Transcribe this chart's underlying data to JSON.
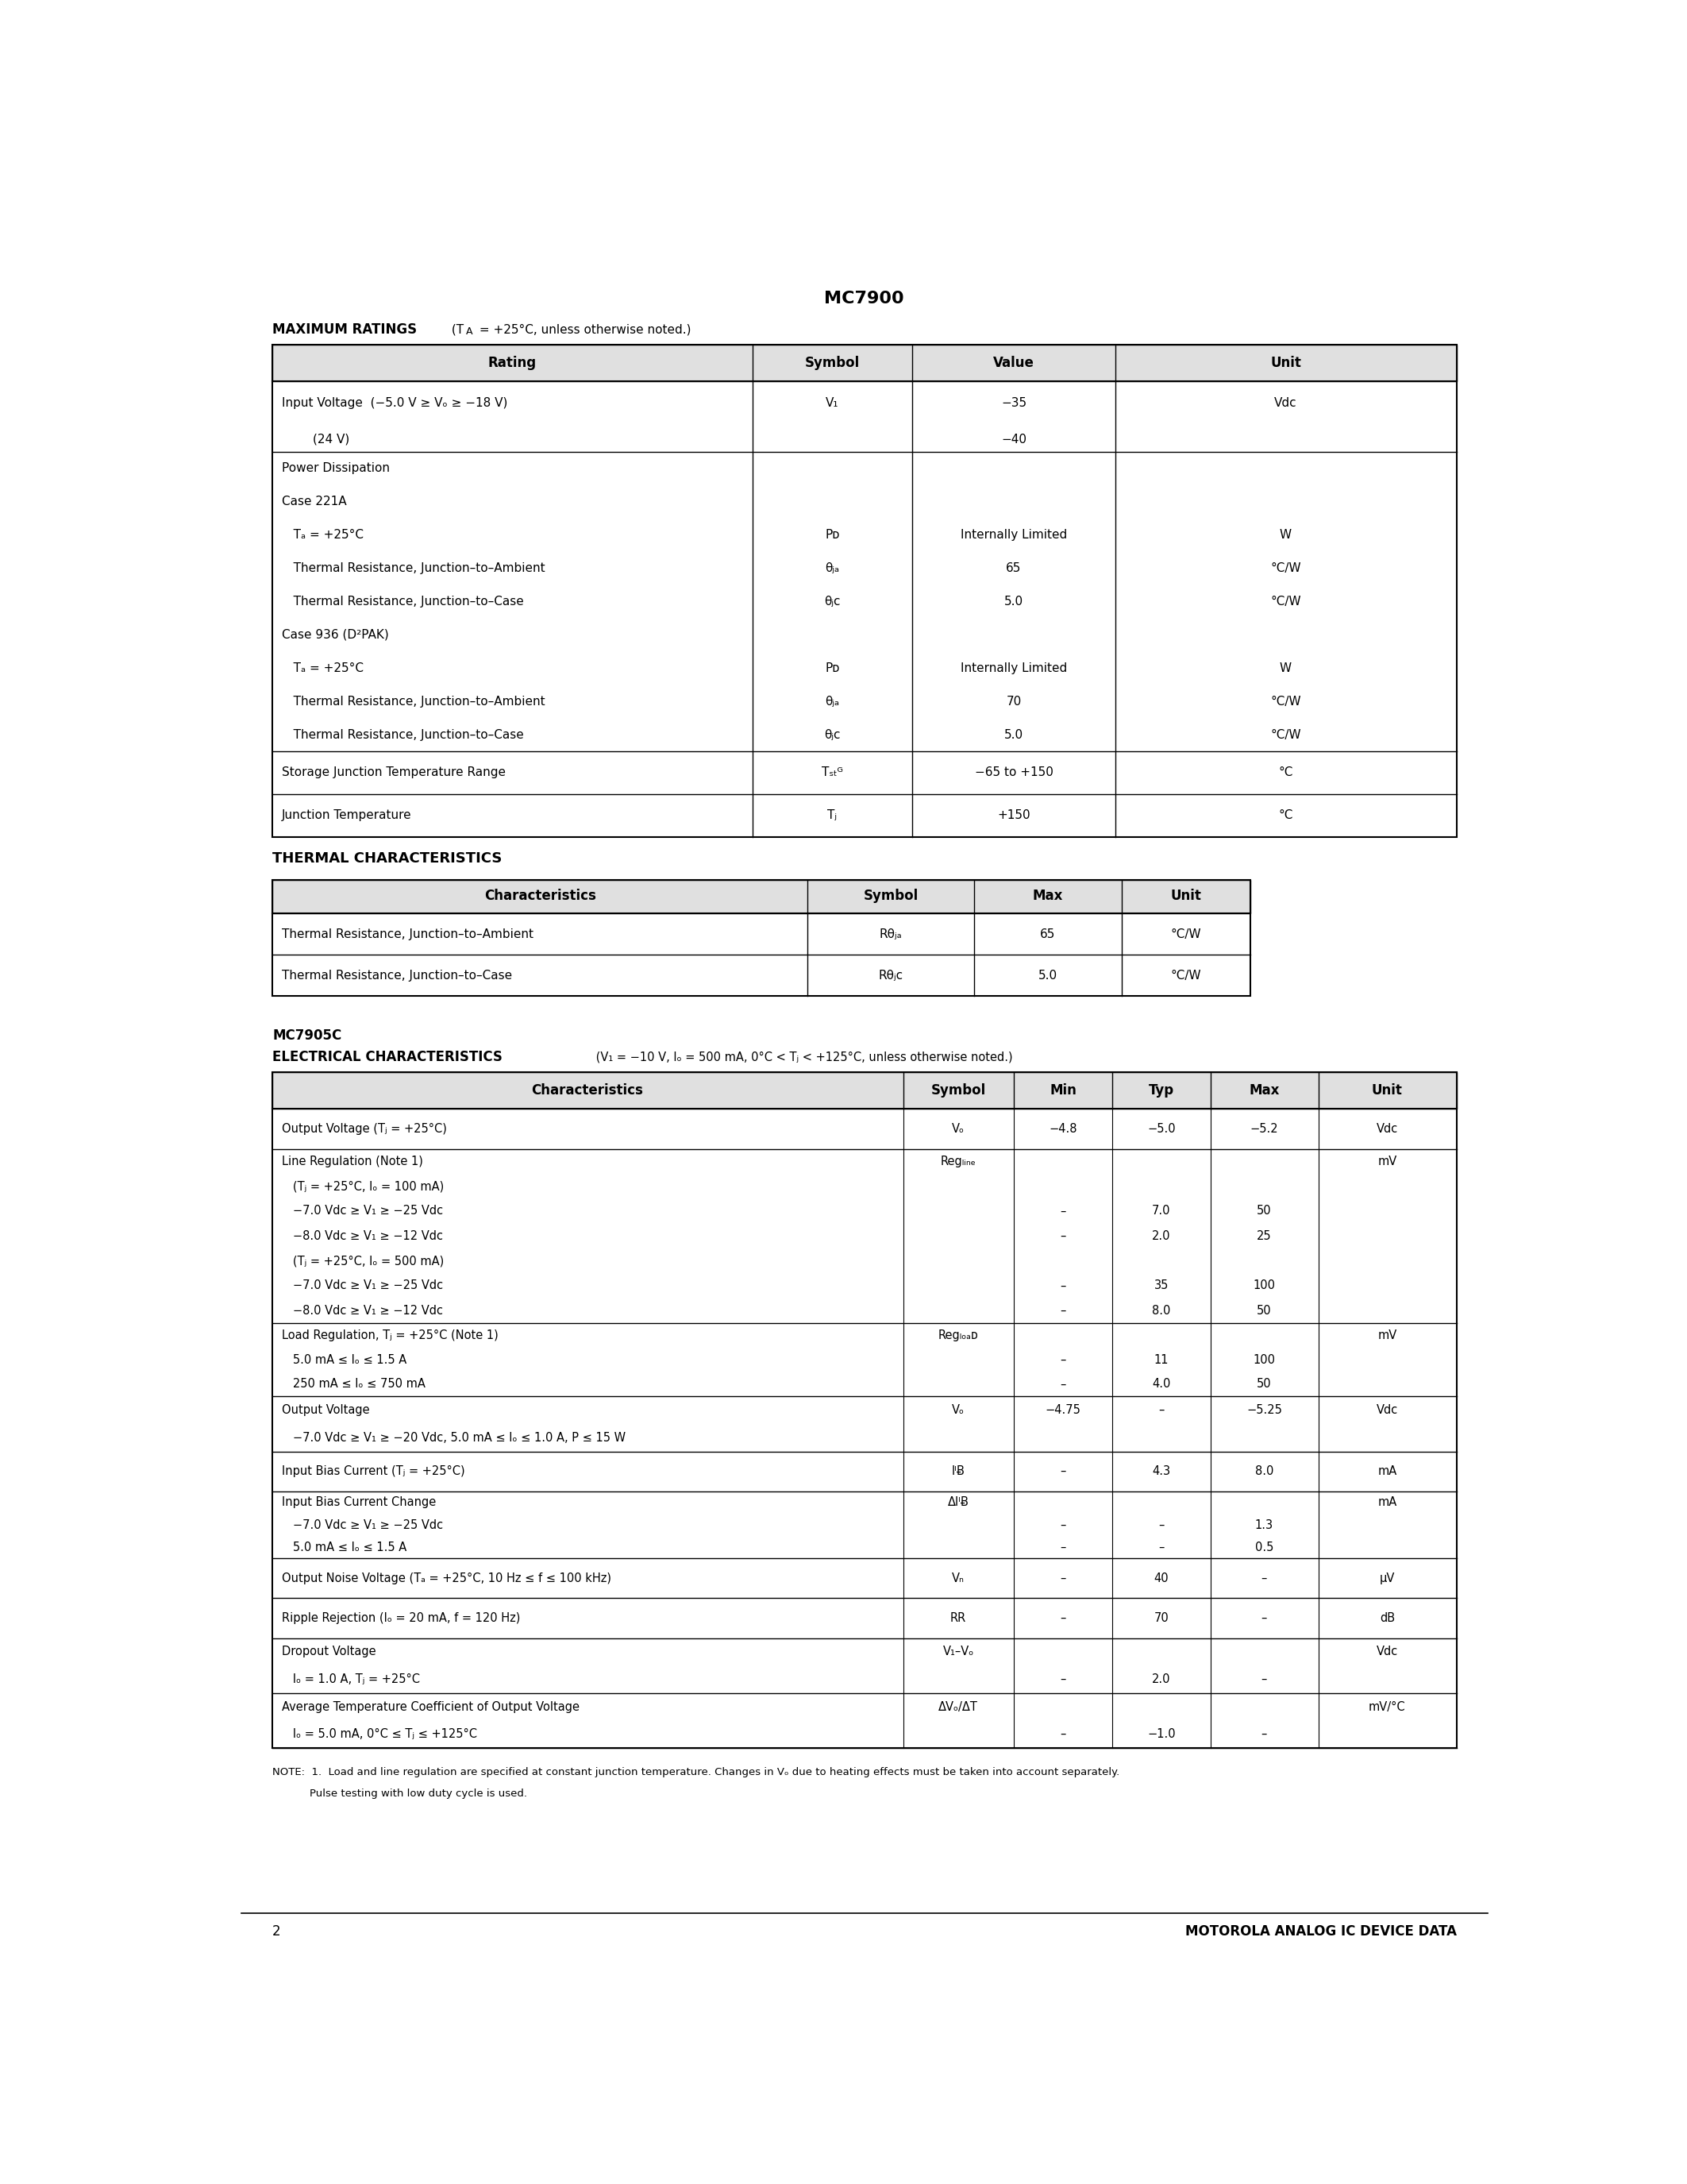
{
  "page_title": "MC7900",
  "page_number": "2",
  "footer_text": "MOTOROLA ANALOG IC DEVICE DATA",
  "bg_color": "#ffffff",
  "max_ratings_headers": [
    "Rating",
    "Symbol",
    "Value",
    "Unit"
  ],
  "thermal_headers": [
    "Characteristics",
    "Symbol",
    "Max",
    "Unit"
  ],
  "ec_device": "MC7905C",
  "ec_title": "ELECTRICAL CHARACTERISTICS",
  "ec_subtitle": "(V₁ = −10 V, Iₒ = 500 mA, 0°C < Tⱼ < +125°C, unless otherwise noted.)",
  "ec_headers": [
    "Characteristics",
    "Symbol",
    "Min",
    "Typ",
    "Max",
    "Unit"
  ]
}
